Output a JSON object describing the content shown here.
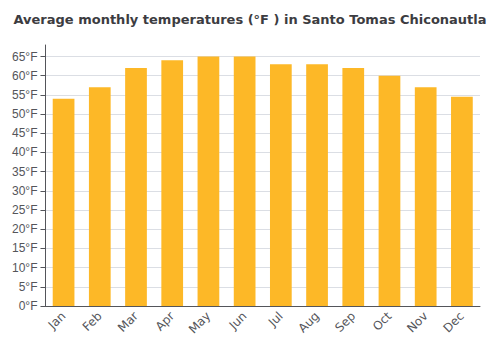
{
  "chart_data": {
    "type": "bar",
    "title": "Average monthly temperatures (°F ) in Santo Tomas Chiconautla",
    "categories": [
      "Jan",
      "Feb",
      "Mar",
      "Apr",
      "May",
      "Jun",
      "Jul",
      "Aug",
      "Sep",
      "Oct",
      "Nov",
      "Dec"
    ],
    "values": [
      54,
      57,
      62,
      64,
      65,
      65,
      63,
      63,
      62,
      60,
      57,
      54.5
    ],
    "color": "#FDB827",
    "ylim": [
      0,
      68
    ],
    "yticks": [
      {
        "value": 0,
        "label": "0°F"
      },
      {
        "value": 5,
        "label": "5°F"
      },
      {
        "value": 10,
        "label": "10°F"
      },
      {
        "value": 15,
        "label": "15°F"
      },
      {
        "value": 20,
        "label": "20°F"
      },
      {
        "value": 25,
        "label": "25°F"
      },
      {
        "value": 30,
        "label": "30°F"
      },
      {
        "value": 35,
        "label": "35°F"
      },
      {
        "value": 40,
        "label": "40°F"
      },
      {
        "value": 45,
        "label": "45°F"
      },
      {
        "value": 50,
        "label": "50°F"
      },
      {
        "value": 55,
        "label": "55°F"
      },
      {
        "value": 60,
        "label": "60°F"
      },
      {
        "value": 65,
        "label": "65°F"
      }
    ],
    "grid": true
  }
}
